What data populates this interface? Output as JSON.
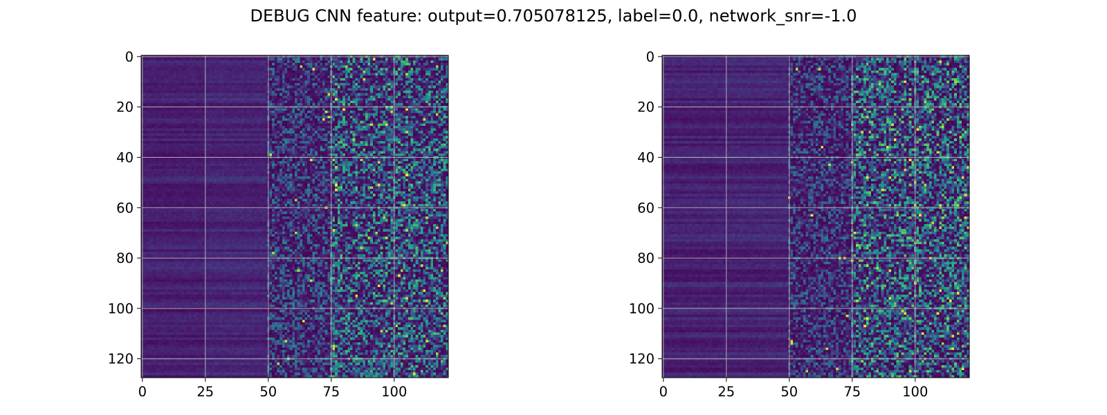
{
  "figure": {
    "title": "DEBUG CNN feature: output=0.705078125, label=0.0, network_snr=-1.0"
  },
  "chart_data": [
    {
      "type": "heatmap",
      "title": "",
      "xlabel": "",
      "ylabel": "",
      "colormap": "viridis",
      "cols": 122,
      "rows": 128,
      "xlim": [
        -0.5,
        121.5
      ],
      "ylim": [
        127.5,
        -0.5
      ],
      "xticks": [
        "0",
        "25",
        "50",
        "75",
        "100"
      ],
      "yticks": [
        "0",
        "20",
        "40",
        "60",
        "80",
        "100",
        "120"
      ],
      "grid": true,
      "column_mean_intensity": [
        {
          "cols": [
            0,
            25
          ],
          "level": 0.06
        },
        {
          "cols": [
            25,
            50
          ],
          "level": 0.1
        },
        {
          "cols": [
            50,
            75
          ],
          "level": 0.2
        },
        {
          "cols": [
            75,
            122
          ],
          "level": 0.32
        }
      ]
    },
    {
      "type": "heatmap",
      "title": "",
      "xlabel": "",
      "ylabel": "",
      "colormap": "viridis",
      "cols": 122,
      "rows": 128,
      "xlim": [
        -0.5,
        121.5
      ],
      "ylim": [
        127.5,
        -0.5
      ],
      "xticks": [
        "0",
        "25",
        "50",
        "75",
        "100"
      ],
      "yticks": [
        "0",
        "20",
        "40",
        "60",
        "80",
        "100",
        "120"
      ],
      "grid": true,
      "column_mean_intensity": [
        {
          "cols": [
            0,
            25
          ],
          "level": 0.06
        },
        {
          "cols": [
            25,
            50
          ],
          "level": 0.08
        },
        {
          "cols": [
            50,
            75
          ],
          "level": 0.18
        },
        {
          "cols": [
            75,
            122
          ],
          "level": 0.34
        }
      ]
    }
  ]
}
